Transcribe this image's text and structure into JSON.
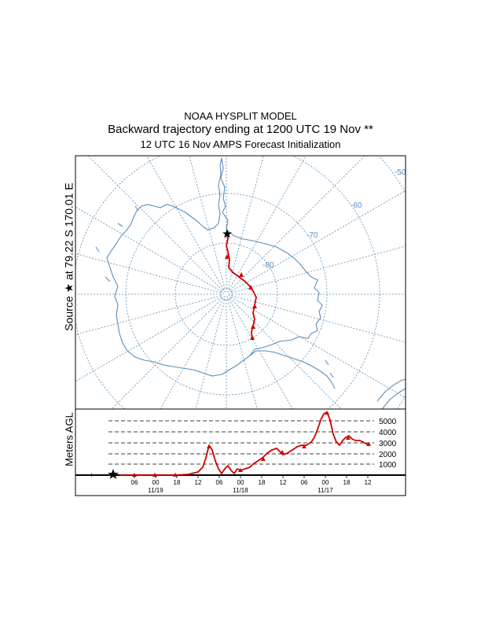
{
  "titles": {
    "line1": "NOAA HYSPLIT MODEL",
    "line2": "Backward trajectory ending at 1200 UTC 19 Nov **",
    "line3": "12 UTC 16 Nov    AMPS  Forecast Initialization"
  },
  "source_label": "Source ★ at   79.22 S  170.01 E",
  "altitude_axis_label": "Meters AGL",
  "map": {
    "latitude_labels": [
      "-50",
      "-60",
      "-70",
      "-80"
    ],
    "colors": {
      "grid": "#5b8db8",
      "trajectory": "#d00000"
    }
  },
  "altitude_levels": [
    "5000",
    "4000",
    "3000",
    "2000",
    "1000"
  ],
  "time_axis": {
    "hour_labels": [
      "06",
      "00",
      "18",
      "12",
      "06",
      "00",
      "18",
      "12",
      "06",
      "00",
      "18",
      "12"
    ],
    "date_labels": [
      "11/19",
      "11/18",
      "11/17"
    ]
  }
}
